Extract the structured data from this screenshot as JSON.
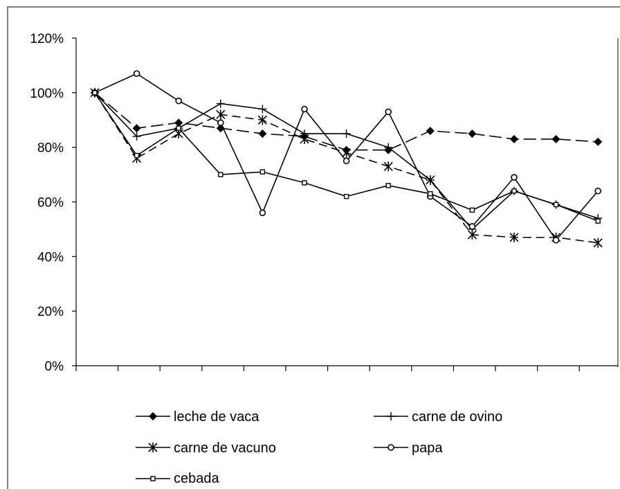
{
  "chart_data": {
    "type": "line",
    "title": "",
    "xlabel": "",
    "ylabel": "",
    "ylim": [
      0,
      120
    ],
    "y_ticks": [
      "0%",
      "20%",
      "40%",
      "60%",
      "80%",
      "100%",
      "120%"
    ],
    "y_tick_values": [
      0,
      20,
      40,
      60,
      80,
      100,
      120
    ],
    "x_points": 13,
    "grid": false,
    "legend_position": "bottom",
    "series": [
      {
        "name": "leche de vaca",
        "style": "long-dash",
        "marker": "diamond",
        "values": [
          100,
          87,
          89,
          87,
          85,
          84,
          79,
          79,
          86,
          85,
          83,
          83,
          82
        ]
      },
      {
        "name": "carne de ovino",
        "style": "solid",
        "marker": "plus",
        "values": [
          100,
          84,
          87,
          96,
          94,
          85,
          85,
          80,
          68,
          50,
          64,
          59,
          54
        ]
      },
      {
        "name": "carne de vacuno",
        "style": "dashed",
        "marker": "star",
        "values": [
          100,
          76,
          85,
          92,
          90,
          83,
          78,
          73,
          68,
          48,
          47,
          47,
          45
        ]
      },
      {
        "name": "papa",
        "style": "solid",
        "marker": "circle",
        "values": [
          100,
          107,
          97,
          89,
          56,
          94,
          75,
          93,
          62,
          51,
          69,
          46,
          64
        ]
      },
      {
        "name": "cebada",
        "style": "solid",
        "marker": "square",
        "values": [
          100,
          77,
          87,
          70,
          71,
          67,
          62,
          66,
          63,
          57,
          64,
          59,
          53
        ]
      }
    ]
  }
}
